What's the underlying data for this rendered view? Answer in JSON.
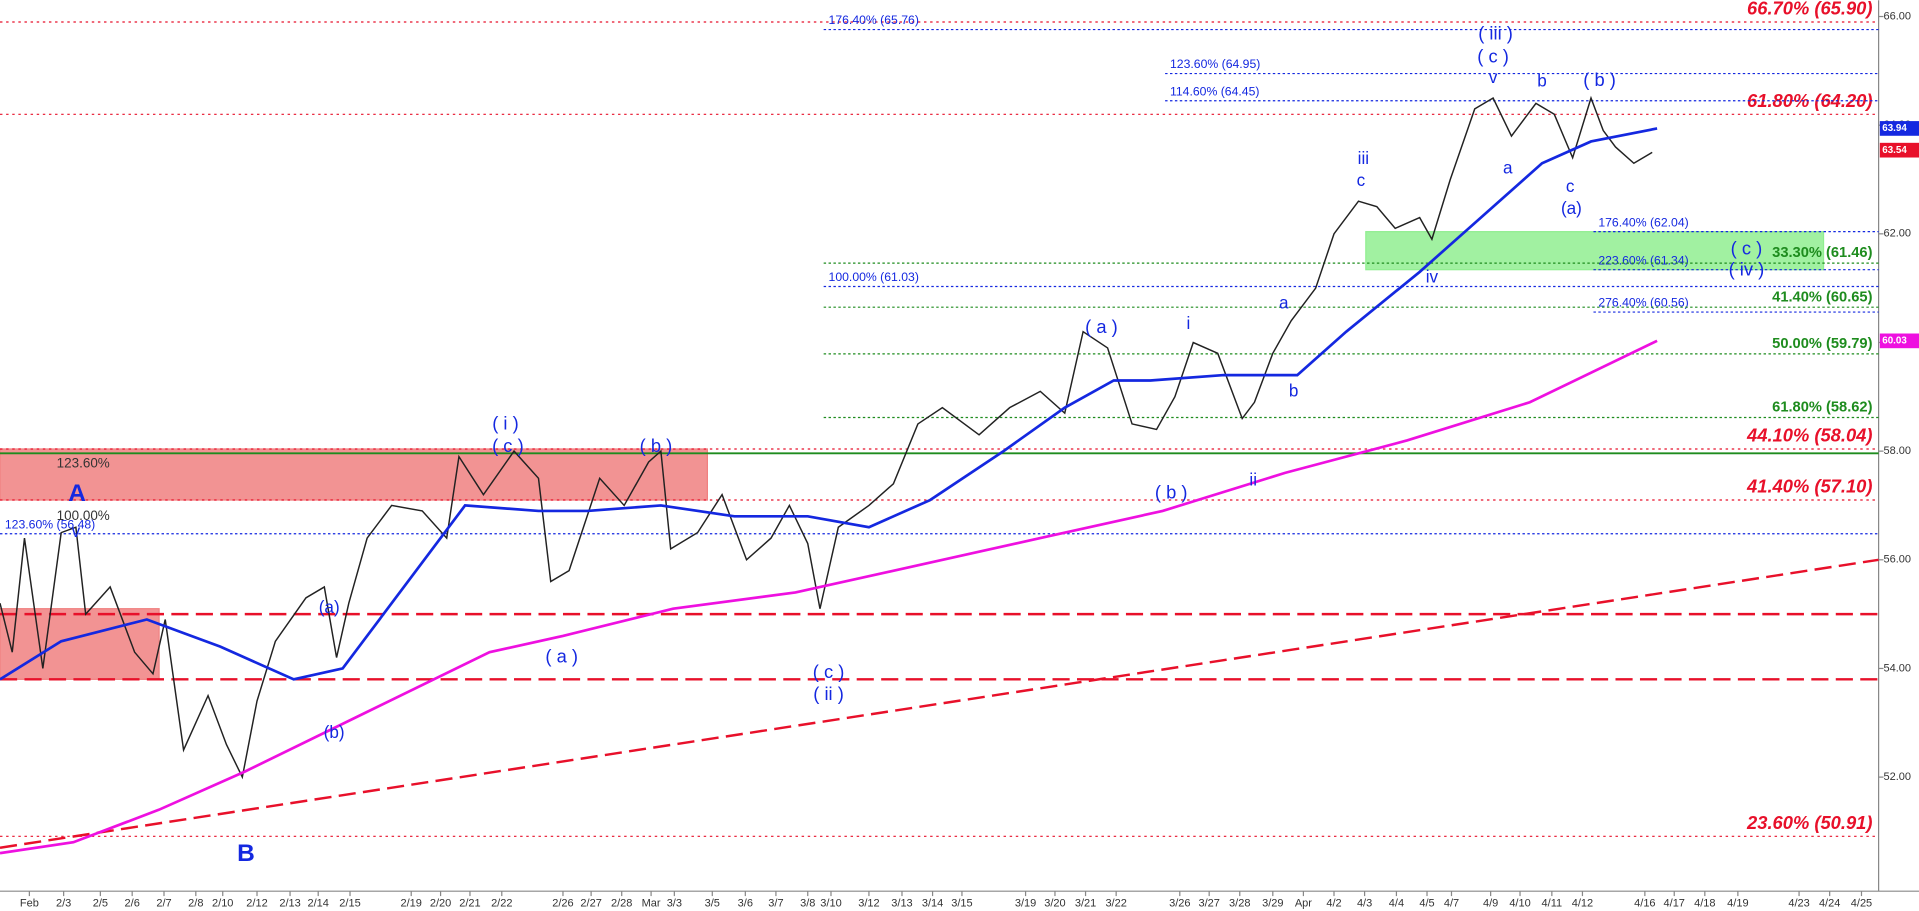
{
  "chart_data": {
    "type": "line",
    "xlim": [
      0,
      153.5
    ],
    "ylim": [
      49.9,
      66.3
    ],
    "xticks": [
      {
        "value": 2.4,
        "label": "Feb"
      },
      {
        "value": 5.2,
        "label": "2/3"
      },
      {
        "value": 8.2,
        "label": "2/5"
      },
      {
        "value": 10.8,
        "label": "2/6"
      },
      {
        "value": 13.4,
        "label": "2/7"
      },
      {
        "value": 16.0,
        "label": "2/8"
      },
      {
        "value": 18.2,
        "label": "2/10"
      },
      {
        "value": 21.0,
        "label": "2/12"
      },
      {
        "value": 23.7,
        "label": "2/13"
      },
      {
        "value": 26.0,
        "label": "2/14"
      },
      {
        "value": 28.6,
        "label": "2/15"
      },
      {
        "value": 33.6,
        "label": "2/19"
      },
      {
        "value": 36.0,
        "label": "2/20"
      },
      {
        "value": 38.4,
        "label": "2/21"
      },
      {
        "value": 41.0,
        "label": "2/22"
      },
      {
        "value": 46.0,
        "label": "2/26"
      },
      {
        "value": 48.3,
        "label": "2/27"
      },
      {
        "value": 50.8,
        "label": "2/28"
      },
      {
        "value": 53.2,
        "label": "Mar"
      },
      {
        "value": 55.1,
        "label": "3/3"
      },
      {
        "value": 58.2,
        "label": "3/5"
      },
      {
        "value": 60.9,
        "label": "3/6"
      },
      {
        "value": 63.4,
        "label": "3/7"
      },
      {
        "value": 66.0,
        "label": "3/8"
      },
      {
        "value": 67.9,
        "label": "3/10"
      },
      {
        "value": 71.0,
        "label": "3/12"
      },
      {
        "value": 73.7,
        "label": "3/13"
      },
      {
        "value": 76.2,
        "label": "3/14"
      },
      {
        "value": 78.6,
        "label": "3/15"
      },
      {
        "value": 83.8,
        "label": "3/19"
      },
      {
        "value": 86.2,
        "label": "3/20"
      },
      {
        "value": 88.7,
        "label": "3/21"
      },
      {
        "value": 91.2,
        "label": "3/22"
      },
      {
        "value": 96.4,
        "label": "3/26"
      },
      {
        "value": 98.8,
        "label": "3/27"
      },
      {
        "value": 101.3,
        "label": "3/28"
      },
      {
        "value": 104.0,
        "label": "3/29"
      },
      {
        "value": 106.5,
        "label": "Apr"
      },
      {
        "value": 109.0,
        "label": "4/2"
      },
      {
        "value": 111.5,
        "label": "4/3"
      },
      {
        "value": 114.1,
        "label": "4/4"
      },
      {
        "value": 116.6,
        "label": "4/5"
      },
      {
        "value": 118.6,
        "label": "4/7"
      },
      {
        "value": 121.8,
        "label": "4/9"
      },
      {
        "value": 124.2,
        "label": "4/10"
      },
      {
        "value": 126.8,
        "label": "4/11"
      },
      {
        "value": 129.3,
        "label": "4/12"
      },
      {
        "value": 134.4,
        "label": "4/16"
      },
      {
        "value": 136.8,
        "label": "4/17"
      },
      {
        "value": 139.3,
        "label": "4/18"
      },
      {
        "value": 142.0,
        "label": "4/19"
      },
      {
        "value": 147.0,
        "label": "4/23"
      },
      {
        "value": 149.5,
        "label": "4/24"
      },
      {
        "value": 152.1,
        "label": "4/25"
      }
    ],
    "yticks": [
      {
        "value": 52,
        "label": "52.00"
      },
      {
        "value": 54,
        "label": "54.00"
      },
      {
        "value": 56,
        "label": "56.00"
      },
      {
        "value": 58,
        "label": "58.00"
      },
      {
        "value": 60,
        "label": "60.00"
      },
      {
        "value": 62,
        "label": "62.00"
      },
      {
        "value": 64,
        "label": "64.00"
      },
      {
        "value": 66,
        "label": "66.00"
      }
    ],
    "series": [
      {
        "color": "#222222",
        "x": [
          0,
          1,
          2,
          3.5,
          5,
          6.2,
          7,
          9,
          11,
          12.5,
          13.5,
          15,
          17,
          18.5,
          19.8,
          21,
          22.5,
          25,
          26.5,
          27.5,
          28.5,
          30,
          32,
          34.5,
          36.5,
          37.5,
          39.5,
          42,
          44,
          45,
          46.5,
          49,
          51,
          53,
          54,
          54.8,
          57,
          59,
          61,
          63,
          64.5,
          66,
          67,
          68.5,
          71,
          73,
          75,
          77,
          80,
          82.5,
          85,
          87,
          88.5,
          90.5,
          92.5,
          94.5,
          96,
          97.5,
          99.5,
          101.5,
          102.5,
          104,
          105.5,
          107.5,
          109,
          111,
          112.5,
          114,
          116,
          117,
          118.5,
          120.5,
          122,
          123.5,
          125.5,
          127,
          128.5,
          130,
          131,
          132,
          133.5,
          135
        ],
        "values": [
          55.2,
          54.3,
          56.4,
          54.0,
          56.5,
          56.6,
          55.0,
          55.5,
          54.3,
          53.9,
          54.9,
          52.5,
          53.5,
          52.6,
          52.0,
          53.4,
          54.5,
          55.3,
          55.5,
          54.2,
          55.2,
          56.4,
          57.0,
          56.9,
          56.4,
          57.9,
          57.2,
          58.0,
          57.5,
          55.6,
          55.8,
          57.5,
          57.0,
          57.8,
          58.0,
          56.2,
          56.5,
          57.2,
          56.0,
          56.4,
          57.0,
          56.3,
          55.1,
          56.6,
          57.0,
          57.4,
          58.5,
          58.8,
          58.3,
          58.8,
          59.1,
          58.7,
          60.2,
          59.9,
          58.5,
          58.4,
          59.0,
          60.0,
          59.8,
          58.6,
          58.9,
          59.8,
          60.4,
          61.0,
          62.0,
          62.6,
          62.5,
          62.1,
          62.3,
          61.9,
          63.0,
          64.3,
          64.5,
          63.8,
          64.4,
          64.2,
          63.4,
          64.5,
          63.9,
          63.6,
          63.3,
          63.5
        ]
      },
      {
        "color": "#1428e0",
        "x": [
          0,
          5,
          12,
          18,
          24,
          28,
          33,
          38,
          44,
          48,
          54,
          60,
          66,
          71,
          76,
          82,
          87,
          91,
          94,
          100,
          106,
          110,
          116,
          121,
          126,
          130,
          135.4
        ],
        "values": [
          53.8,
          54.5,
          54.9,
          54.4,
          53.8,
          54.0,
          55.5,
          57.0,
          56.9,
          56.9,
          57.0,
          56.8,
          56.8,
          56.6,
          57.1,
          58.0,
          58.8,
          59.3,
          59.3,
          59.4,
          59.4,
          60.2,
          61.3,
          62.3,
          63.3,
          63.7,
          63.94
        ]
      },
      {
        "color": "#ee10e0",
        "x": [
          0,
          6,
          13,
          20,
          30,
          40,
          46,
          55,
          65,
          75,
          85,
          95,
          105,
          115,
          125,
          135.4
        ],
        "values": [
          50.6,
          50.8,
          51.4,
          52.1,
          53.2,
          54.3,
          54.6,
          55.1,
          55.4,
          55.9,
          56.4,
          56.9,
          57.6,
          58.2,
          58.9,
          60.03
        ]
      }
    ],
    "trendline": {
      "color": "#e8102a",
      "x": [
        0,
        153.5
      ],
      "values": [
        50.7,
        56.0
      ]
    },
    "zones": [
      {
        "color": "#f08080",
        "xlim": [
          0,
          57.8
        ],
        "ylim": [
          57.1,
          58.04
        ]
      },
      {
        "color": "#f08080",
        "xlim": [
          0,
          13
        ],
        "ylim": [
          53.8,
          55.1
        ]
      },
      {
        "color": "#90ee90",
        "xlim": [
          111.6,
          149
        ],
        "ylim": [
          61.34,
          62.04
        ]
      }
    ],
    "levels": [
      {
        "value": 65.9,
        "x0": 0,
        "kind": "major",
        "color": "#e8102a",
        "label": "66.70% (65.90)"
      },
      {
        "value": 64.2,
        "x0": 0,
        "kind": "major",
        "color": "#e8102a",
        "label": "61.80% (64.20)"
      },
      {
        "value": 58.04,
        "x0": 0,
        "kind": "major",
        "color": "#e8102a",
        "label": "44.10% (58.04)"
      },
      {
        "value": 57.1,
        "x0": 0,
        "kind": "major",
        "color": "#e8102a",
        "label": "41.40% (57.10)"
      },
      {
        "value": 50.91,
        "x0": 0,
        "kind": "major",
        "color": "#e8102a",
        "label": "23.60% (50.91)"
      },
      {
        "value": 65.76,
        "x0": 67.3,
        "kind": "fib",
        "color": "#1428e0",
        "label": "176.40% (65.76)"
      },
      {
        "value": 64.95,
        "x0": 95.2,
        "kind": "fib",
        "color": "#1428e0",
        "label": "123.60% (64.95)"
      },
      {
        "value": 64.45,
        "x0": 95.2,
        "kind": "fib",
        "color": "#1428e0",
        "label": "114.60% (64.45)"
      },
      {
        "value": 62.04,
        "x0": 130.2,
        "kind": "fib",
        "color": "#1428e0",
        "label": "176.40% (62.04)"
      },
      {
        "value": 61.34,
        "x0": 130.2,
        "kind": "fib",
        "color": "#1428e0",
        "label": "223.60% (61.34)"
      },
      {
        "value": 60.56,
        "x0": 130.2,
        "kind": "fib",
        "color": "#1428e0",
        "label": "276.40% (60.56)"
      },
      {
        "value": 61.03,
        "x0": 67.3,
        "kind": "fib",
        "color": "#1428e0",
        "label": "100.00% (61.03)"
      },
      {
        "value": 56.48,
        "x0": 0,
        "kind": "fib",
        "color": "#1428e0",
        "label": "123.60% (56.48)"
      },
      {
        "value": 61.46,
        "x0": 67.3,
        "kind": "retrace",
        "color": "#1e8c1e",
        "label": "33.30% (61.46)"
      },
      {
        "value": 60.65,
        "x0": 67.3,
        "kind": "retrace",
        "color": "#1e8c1e",
        "label": "41.40% (60.65)"
      },
      {
        "value": 59.79,
        "x0": 67.3,
        "kind": "retrace",
        "color": "#1e8c1e",
        "label": "50.00% (59.79)"
      },
      {
        "value": 58.62,
        "x0": 67.3,
        "kind": "retrace",
        "color": "#1e8c1e",
        "label": "61.80% (58.62)"
      },
      {
        "value": 57.96,
        "x0": 0,
        "kind": "solid",
        "color": "#1e8c1e"
      },
      {
        "value": 55.0,
        "x0": 0,
        "kind": "dashed",
        "color": "#e8102a"
      },
      {
        "value": 53.8,
        "x0": 0,
        "kind": "dashed",
        "color": "#e8102a"
      }
    ],
    "price_labels": [
      {
        "value": 63.94,
        "color": "#1428e0"
      },
      {
        "value": 63.54,
        "color": "#e8102a"
      },
      {
        "value": 60.03,
        "color": "#ee10e0"
      }
    ],
    "annotations": [
      "( iii )",
      "( c )",
      "v",
      "b",
      "( b )",
      "a",
      "c",
      "(a)",
      "iii",
      "c",
      "( c )",
      "( iv )",
      "iv",
      "a",
      "i",
      "( a )",
      "b",
      "( b )",
      "ii",
      "( i )",
      "( c )",
      "( b )",
      "(a)",
      "( a )",
      "( c )",
      "( ii )",
      "(b)",
      "A",
      "v",
      "B",
      "123.60%",
      "100.00%"
    ]
  }
}
